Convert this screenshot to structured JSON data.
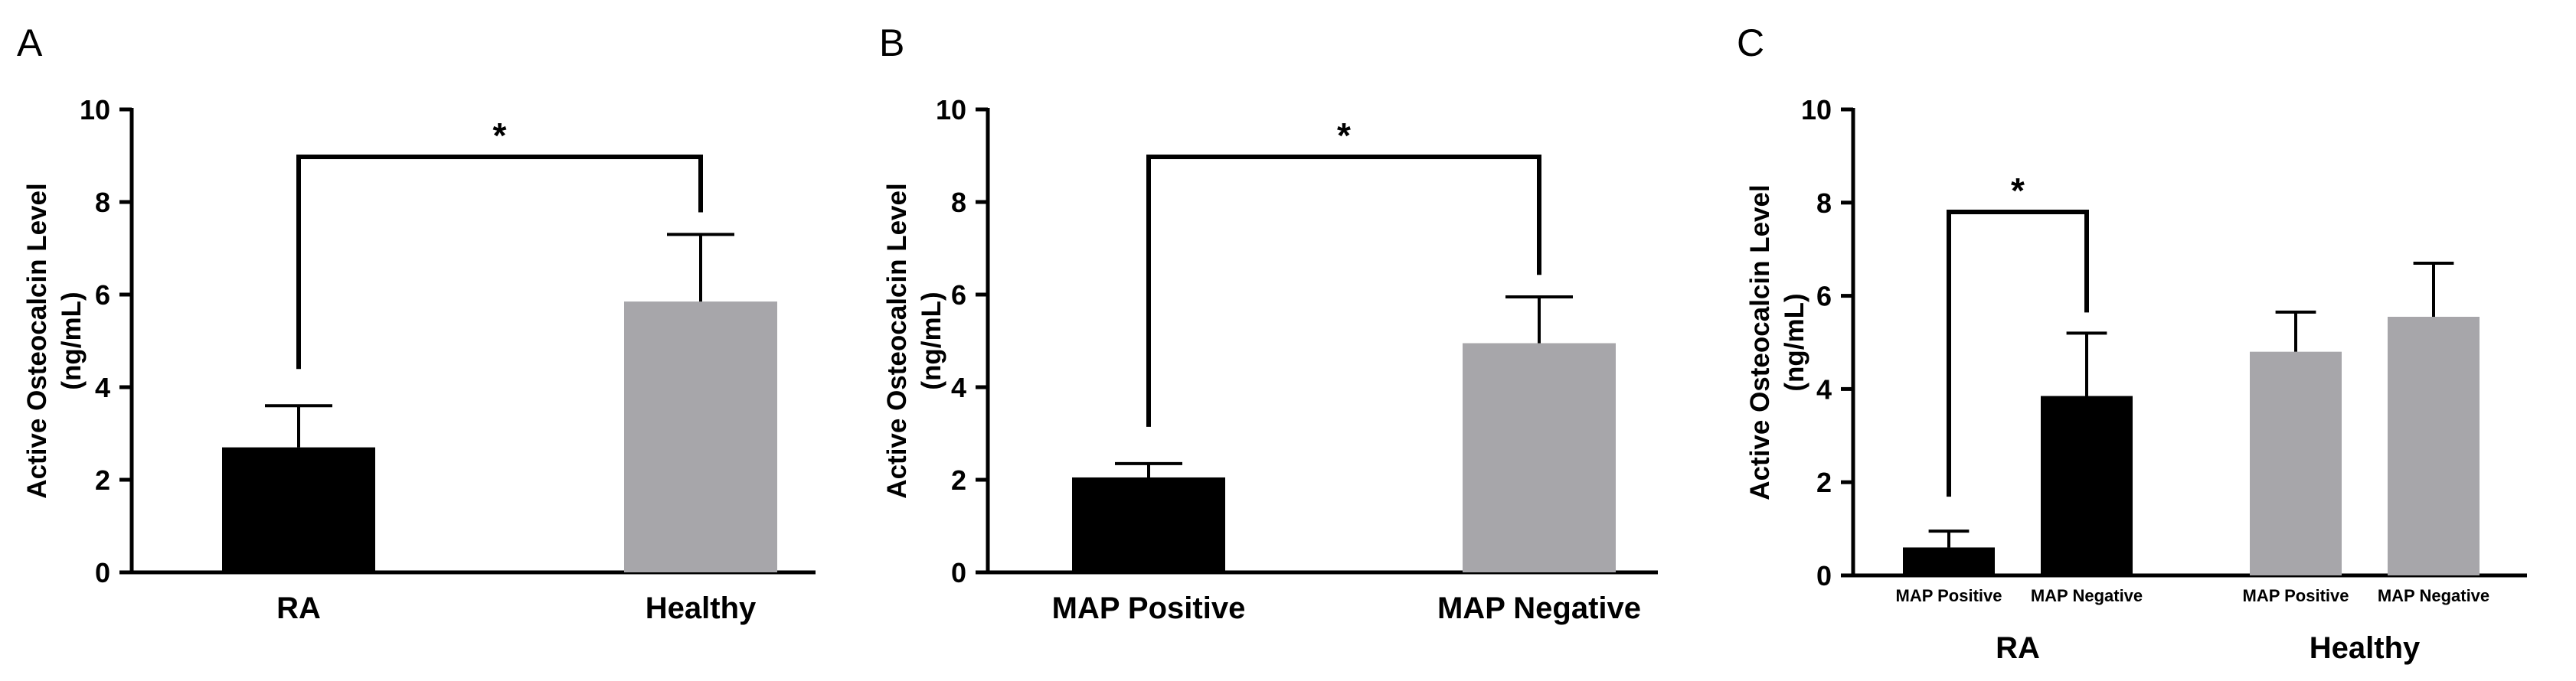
{
  "chart_data": [
    {
      "type": "bar",
      "panel": "A",
      "ylabel": "Active Osteocalcin Level",
      "yunit": "(ng/mL)",
      "ylim": [
        0,
        10
      ],
      "yticks": [
        0,
        2,
        4,
        6,
        8,
        10
      ],
      "categories": [
        "RA",
        "Healthy"
      ],
      "values": [
        2.7,
        5.85
      ],
      "errors": [
        0.9,
        1.45
      ],
      "colors": [
        "#000000",
        "#a7a6aa"
      ],
      "significance": [
        {
          "from": 0,
          "to": 1,
          "label": "*"
        }
      ]
    },
    {
      "type": "bar",
      "panel": "B",
      "ylabel": "Active Osteocalcin Level",
      "yunit": "(ng/mL)",
      "ylim": [
        0,
        10
      ],
      "yticks": [
        0,
        2,
        4,
        6,
        8,
        10
      ],
      "categories": [
        "MAP Positive",
        "MAP Negative"
      ],
      "values": [
        2.05,
        4.95
      ],
      "errors": [
        0.3,
        1.0
      ],
      "colors": [
        "#000000",
        "#a7a6aa"
      ],
      "significance": [
        {
          "from": 0,
          "to": 1,
          "label": "*"
        }
      ]
    },
    {
      "type": "bar",
      "panel": "C",
      "ylabel": "Active Osteocalcin Level",
      "yunit": "(ng/mL)",
      "ylim": [
        0,
        10
      ],
      "yticks": [
        0,
        2,
        4,
        6,
        8,
        10
      ],
      "groups": [
        "RA",
        "Healthy"
      ],
      "categories": [
        "MAP Positive",
        "MAP Negative",
        "MAP Positive",
        "MAP Negative"
      ],
      "group_of": [
        0,
        0,
        1,
        1
      ],
      "values": [
        0.6,
        3.85,
        4.8,
        5.55
      ],
      "errors": [
        0.35,
        1.35,
        0.85,
        1.15
      ],
      "colors": [
        "#000000",
        "#000000",
        "#a7a6aa",
        "#a7a6aa"
      ],
      "significance": [
        {
          "from": 0,
          "to": 1,
          "label": "*"
        }
      ]
    }
  ]
}
